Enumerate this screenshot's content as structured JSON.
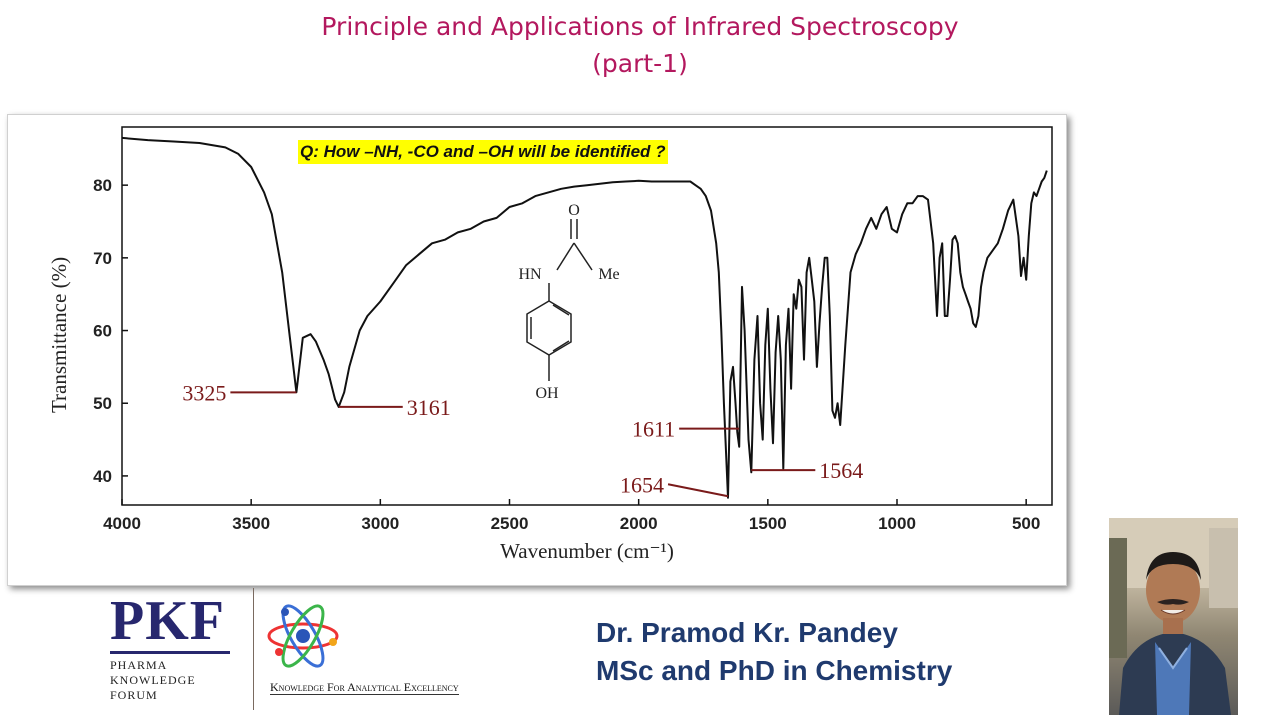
{
  "header": {
    "title_line1": "Principle and Applications of Infrared Spectroscopy",
    "title_line2": "(part-1)"
  },
  "question": "Q: How –NH, -CO and –OH will be identified ?",
  "molecule_labels": {
    "carbonyl_o": "O",
    "nh": "HN",
    "methyl": "Me",
    "hydroxyl": "OH"
  },
  "chart_data": {
    "type": "line",
    "title": "",
    "xlabel": "Wavenumber (cm⁻¹)",
    "ylabel": "Transmittance (%)",
    "xlim": [
      4000,
      400
    ],
    "ylim": [
      36,
      88
    ],
    "x_reversed": true,
    "grid": false,
    "xticks": [
      4000,
      3500,
      3000,
      2500,
      2000,
      1500,
      1000,
      500
    ],
    "yticks": [
      40,
      50,
      60,
      70,
      80
    ],
    "series": [
      {
        "x": [
          4000,
          3900,
          3800,
          3700,
          3600,
          3550,
          3500,
          3450,
          3420,
          3380,
          3350,
          3325,
          3300,
          3270,
          3250,
          3220,
          3200,
          3175,
          3161,
          3140,
          3120,
          3080,
          3050,
          3000,
          2950,
          2900,
          2850,
          2800,
          2750,
          2700,
          2650,
          2600,
          2550,
          2500,
          2450,
          2400,
          2350,
          2300,
          2250,
          2200,
          2150,
          2100,
          2050,
          2000,
          1950,
          1900,
          1850,
          1800,
          1780,
          1760,
          1740,
          1720,
          1700,
          1690,
          1680,
          1670,
          1654,
          1645,
          1635,
          1625,
          1618,
          1611,
          1600,
          1590,
          1575,
          1564,
          1552,
          1540,
          1530,
          1520,
          1510,
          1500,
          1490,
          1480,
          1470,
          1460,
          1450,
          1440,
          1430,
          1420,
          1410,
          1400,
          1390,
          1380,
          1370,
          1360,
          1350,
          1340,
          1330,
          1320,
          1310,
          1300,
          1290,
          1280,
          1270,
          1260,
          1250,
          1240,
          1230,
          1220,
          1200,
          1180,
          1160,
          1140,
          1120,
          1100,
          1080,
          1060,
          1040,
          1020,
          1000,
          980,
          960,
          940,
          920,
          900,
          880,
          860,
          845,
          835,
          825,
          815,
          805,
          795,
          785,
          775,
          765,
          755,
          745,
          735,
          725,
          715,
          705,
          695,
          685,
          675,
          665,
          650,
          630,
          610,
          590,
          570,
          550,
          530,
          520,
          510,
          500,
          490,
          480,
          470,
          460,
          450,
          440,
          430,
          420
        ],
        "y": [
          86.5,
          86.2,
          86,
          85.8,
          85.2,
          84.3,
          82.5,
          79,
          76,
          68,
          59,
          51.5,
          59,
          59.5,
          58.5,
          56,
          54,
          50.5,
          49.5,
          51.5,
          55,
          60,
          62,
          64,
          66.5,
          69,
          70.5,
          72,
          72.5,
          73.5,
          74,
          75,
          75.5,
          77,
          77.5,
          78.5,
          79,
          79.5,
          79.8,
          80,
          80.2,
          80.4,
          80.5,
          80.6,
          80.5,
          80.5,
          80.5,
          80.5,
          80,
          79.5,
          78.5,
          76.5,
          72,
          68,
          60,
          50,
          37,
          53,
          55,
          50,
          46,
          44,
          66,
          60,
          45,
          40.5,
          56,
          62,
          50,
          45,
          58,
          63,
          52,
          44.5,
          57,
          62,
          56,
          41,
          58,
          63,
          52,
          65,
          63,
          67,
          66,
          56,
          68,
          70,
          67,
          64,
          55,
          61,
          66,
          70,
          70,
          62,
          49,
          48,
          50,
          47,
          58,
          68,
          70.5,
          72,
          74,
          75.5,
          74,
          76,
          77,
          74,
          73.5,
          76,
          77.5,
          77.5,
          78.5,
          78.5,
          78,
          72,
          62,
          70,
          72,
          62,
          62,
          67,
          72.5,
          73,
          72,
          68,
          66,
          65,
          64,
          63,
          61,
          60.5,
          62,
          66,
          68,
          70,
          71,
          72,
          74,
          76.5,
          78,
          73,
          67.5,
          70,
          67,
          73,
          77.5,
          79,
          78.5,
          79.5,
          80.5,
          81,
          82
        ]
      }
    ],
    "annotations": [
      {
        "label": "3325",
        "x": 3325,
        "y": 51.5
      },
      {
        "label": "3161",
        "x": 3161,
        "y": 49.5
      },
      {
        "label": "1611",
        "x": 1611,
        "y": 46.5
      },
      {
        "label": "1654",
        "x": 1654,
        "y": 37.2
      },
      {
        "label": "1564",
        "x": 1564,
        "y": 40.8
      }
    ]
  },
  "footer": {
    "logo_text": "PKF",
    "logo_sub": [
      "Pharma",
      "knowledge",
      "forum"
    ],
    "tagline": "Knowledge For Analytical Excellency",
    "author_name": "Dr. Pramod Kr. Pandey",
    "author_degree": "MSc and PhD in Chemistry"
  },
  "colors": {
    "title": "#b3185e",
    "annotation": "#7a1a1a",
    "author": "#1f3a6e",
    "logo": "#27276e",
    "highlight": "#ffff00"
  }
}
